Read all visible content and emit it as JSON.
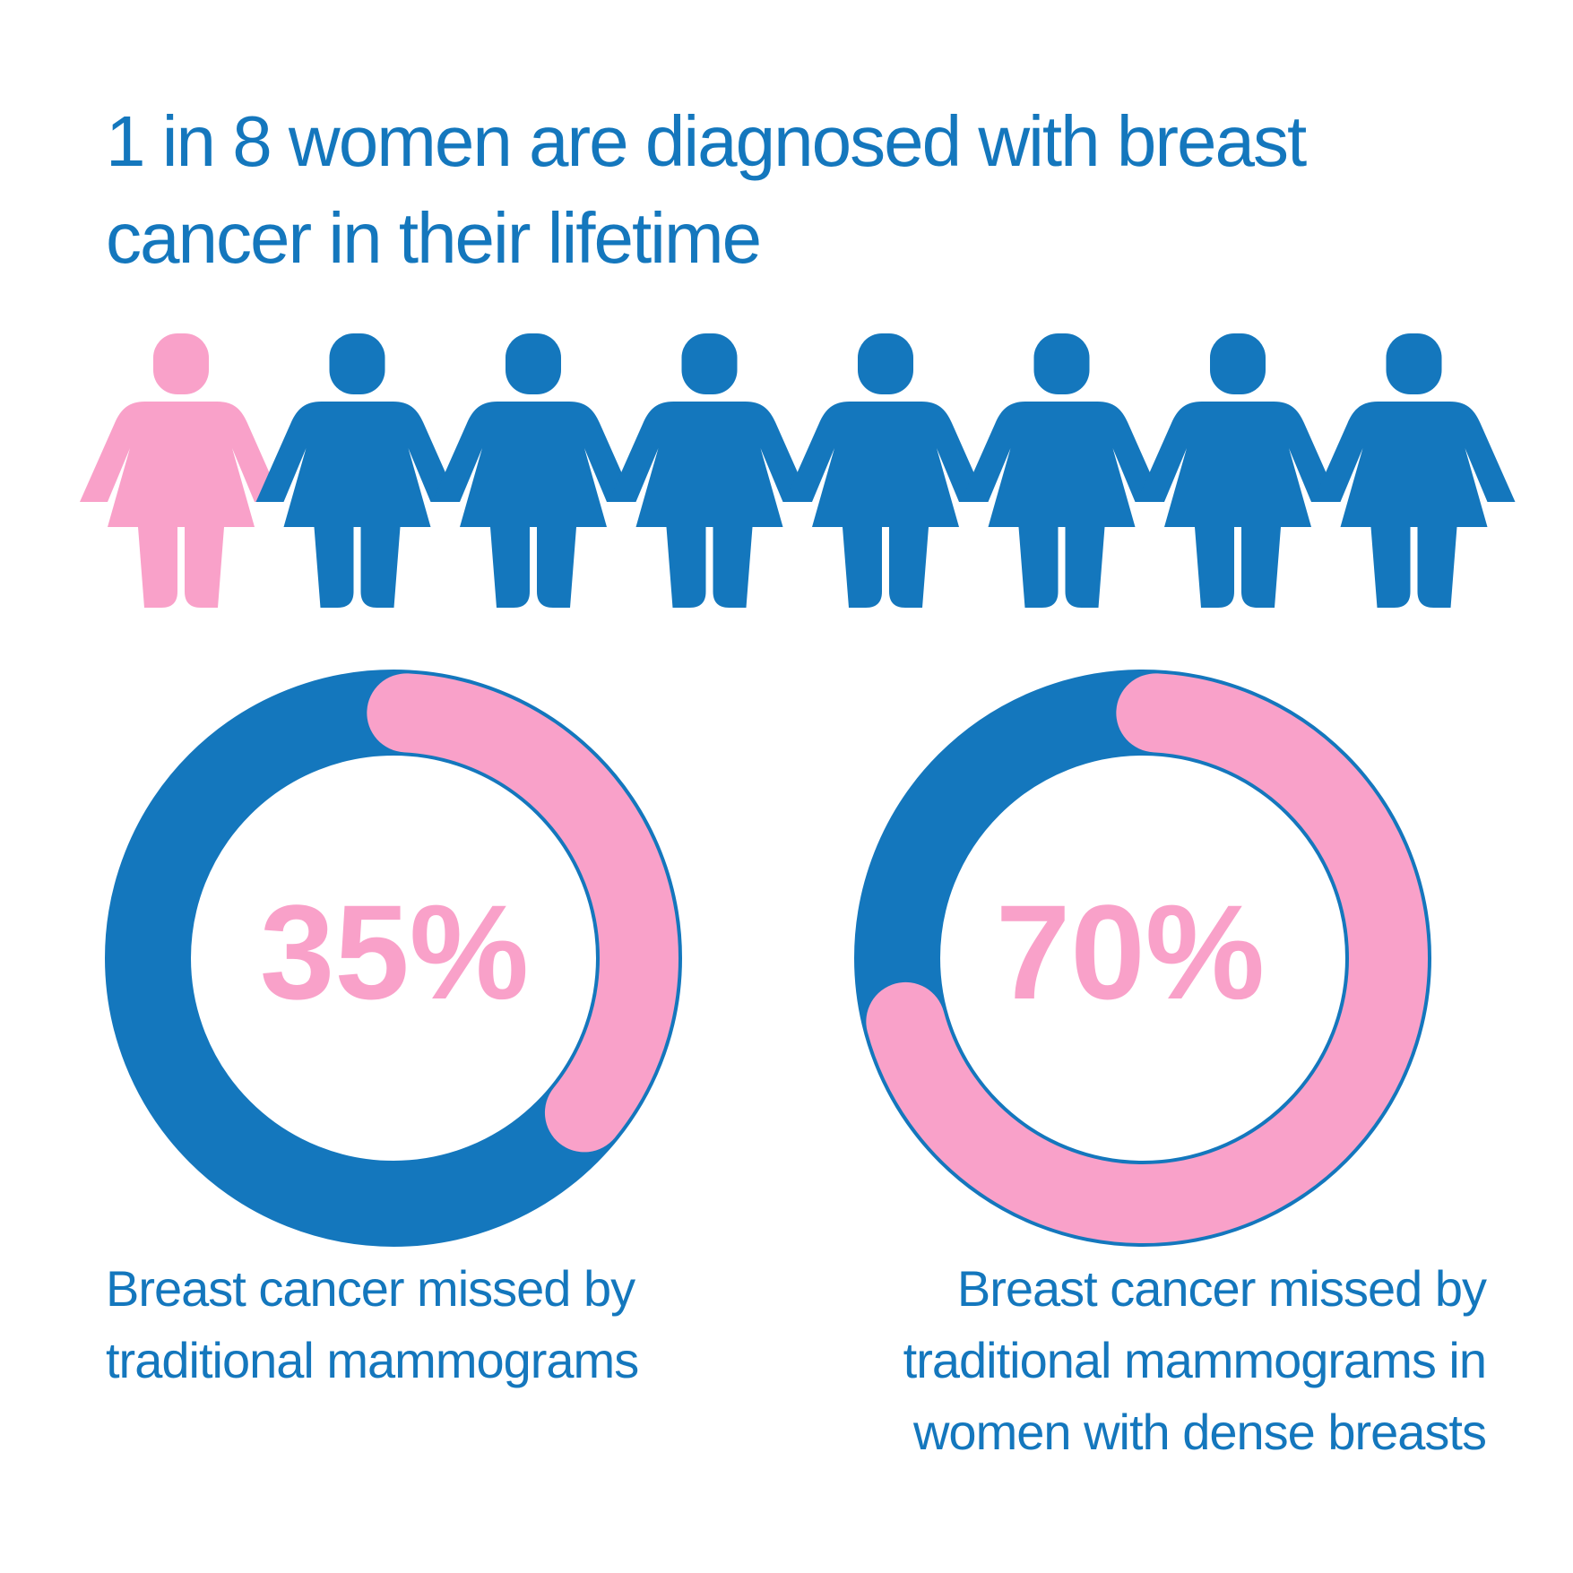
{
  "headline": "1 in 8 women are diagnosed with breast cancer in their lifetime",
  "icons": {
    "name": "woman-icon",
    "total": 8,
    "highlighted": 1
  },
  "colors": {
    "blue": "#1477bd",
    "pink": "#f9a1c9",
    "background": "#ffffff"
  },
  "chart_data": [
    {
      "type": "pie",
      "value": 35,
      "value_label": "35%",
      "caption": "Breast cancer missed by traditional mammograms"
    },
    {
      "type": "pie",
      "value": 70,
      "value_label": "70%",
      "caption": "Breast cancer missed by traditional mammograms in women with dense breasts"
    }
  ]
}
